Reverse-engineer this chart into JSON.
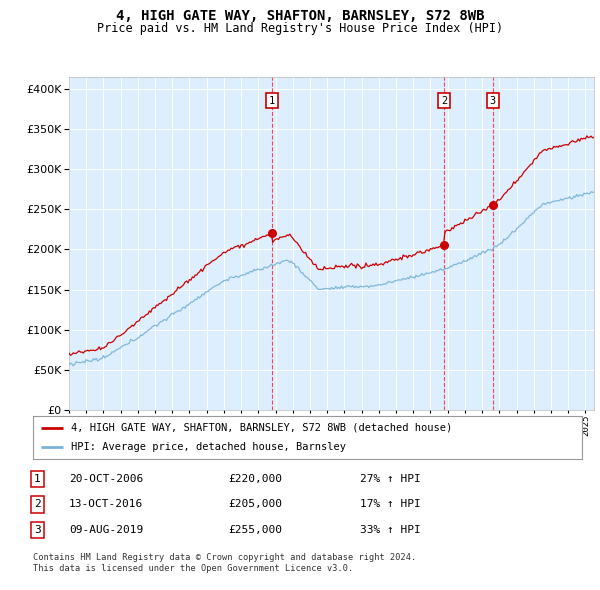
{
  "title": "4, HIGH GATE WAY, SHAFTON, BARNSLEY, S72 8WB",
  "subtitle": "Price paid vs. HM Land Registry's House Price Index (HPI)",
  "ytick_vals": [
    0,
    50000,
    100000,
    150000,
    200000,
    250000,
    300000,
    350000,
    400000
  ],
  "ylim": [
    0,
    415000
  ],
  "xlim_start": 1995.0,
  "xlim_end": 2025.5,
  "plot_bg_color": "#ddeeff",
  "hpi_color": "#7ab4d8",
  "price_color": "#cc0000",
  "grid_color": "#ffffff",
  "sale_prices": [
    220000,
    205000,
    255000
  ],
  "sale_labels": [
    "1",
    "2",
    "3"
  ],
  "sale_hpi_pct": [
    "27% ↑ HPI",
    "17% ↑ HPI",
    "33% ↑ HPI"
  ],
  "sale_date_strs": [
    "20-OCT-2006",
    "13-OCT-2016",
    "09-AUG-2019"
  ],
  "sale_price_strs": [
    "£220,000",
    "£205,000",
    "£255,000"
  ],
  "legend_label_price": "4, HIGH GATE WAY, SHAFTON, BARNSLEY, S72 8WB (detached house)",
  "legend_label_hpi": "HPI: Average price, detached house, Barnsley",
  "footnote": "Contains HM Land Registry data © Crown copyright and database right 2024.\nThis data is licensed under the Open Government Licence v3.0."
}
